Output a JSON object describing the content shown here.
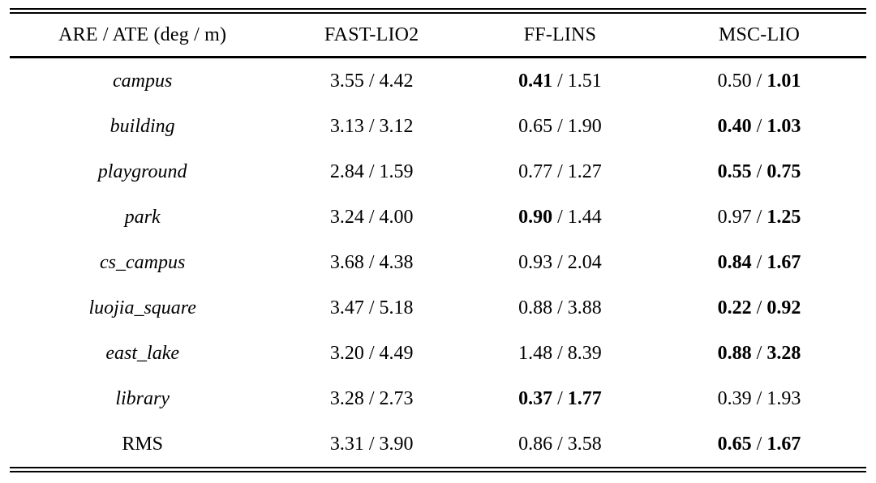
{
  "table": {
    "columns": [
      "ARE / ATE (deg / m)",
      "FAST-LIO2",
      "FF-LINS",
      "MSC-LIO"
    ],
    "value_separator": " / ",
    "rows": [
      {
        "label": "campus",
        "italic": true,
        "cells": [
          {
            "are": "3.55",
            "ate": "4.42",
            "are_bold": false,
            "ate_bold": false
          },
          {
            "are": "0.41",
            "ate": "1.51",
            "are_bold": true,
            "ate_bold": false
          },
          {
            "are": "0.50",
            "ate": "1.01",
            "are_bold": false,
            "ate_bold": true
          }
        ]
      },
      {
        "label": "building",
        "italic": true,
        "cells": [
          {
            "are": "3.13",
            "ate": "3.12",
            "are_bold": false,
            "ate_bold": false
          },
          {
            "are": "0.65",
            "ate": "1.90",
            "are_bold": false,
            "ate_bold": false
          },
          {
            "are": "0.40",
            "ate": "1.03",
            "are_bold": true,
            "ate_bold": true
          }
        ]
      },
      {
        "label": "playground",
        "italic": true,
        "cells": [
          {
            "are": "2.84",
            "ate": "1.59",
            "are_bold": false,
            "ate_bold": false
          },
          {
            "are": "0.77",
            "ate": "1.27",
            "are_bold": false,
            "ate_bold": false
          },
          {
            "are": "0.55",
            "ate": "0.75",
            "are_bold": true,
            "ate_bold": true
          }
        ]
      },
      {
        "label": "park",
        "italic": true,
        "cells": [
          {
            "are": "3.24",
            "ate": "4.00",
            "are_bold": false,
            "ate_bold": false
          },
          {
            "are": "0.90",
            "ate": "1.44",
            "are_bold": true,
            "ate_bold": false
          },
          {
            "are": "0.97",
            "ate": "1.25",
            "are_bold": false,
            "ate_bold": true
          }
        ]
      },
      {
        "label": "cs_campus",
        "italic": true,
        "cells": [
          {
            "are": "3.68",
            "ate": "4.38",
            "are_bold": false,
            "ate_bold": false
          },
          {
            "are": "0.93",
            "ate": "2.04",
            "are_bold": false,
            "ate_bold": false
          },
          {
            "are": "0.84",
            "ate": "1.67",
            "are_bold": true,
            "ate_bold": true
          }
        ]
      },
      {
        "label": "luojia_square",
        "italic": true,
        "cells": [
          {
            "are": "3.47",
            "ate": "5.18",
            "are_bold": false,
            "ate_bold": false
          },
          {
            "are": "0.88",
            "ate": "3.88",
            "are_bold": false,
            "ate_bold": false
          },
          {
            "are": "0.22",
            "ate": "0.92",
            "are_bold": true,
            "ate_bold": true
          }
        ]
      },
      {
        "label": "east_lake",
        "italic": true,
        "cells": [
          {
            "are": "3.20",
            "ate": "4.49",
            "are_bold": false,
            "ate_bold": false
          },
          {
            "are": "1.48",
            "ate": "8.39",
            "are_bold": false,
            "ate_bold": false
          },
          {
            "are": "0.88",
            "ate": "3.28",
            "are_bold": true,
            "ate_bold": true
          }
        ]
      },
      {
        "label": "library",
        "italic": true,
        "cells": [
          {
            "are": "3.28",
            "ate": "2.73",
            "are_bold": false,
            "ate_bold": false
          },
          {
            "are": "0.37",
            "ate": "1.77",
            "are_bold": true,
            "ate_bold": true
          },
          {
            "are": "0.39",
            "ate": "1.93",
            "are_bold": false,
            "ate_bold": false
          }
        ]
      },
      {
        "label": "RMS",
        "italic": false,
        "cells": [
          {
            "are": "3.31",
            "ate": "3.90",
            "are_bold": false,
            "ate_bold": false
          },
          {
            "are": "0.86",
            "ate": "3.58",
            "are_bold": false,
            "ate_bold": false
          },
          {
            "are": "0.65",
            "ate": "1.67",
            "are_bold": true,
            "ate_bold": true
          }
        ]
      }
    ],
    "colors": {
      "text": "#000000",
      "rule": "#000000",
      "background": "#ffffff"
    }
  }
}
